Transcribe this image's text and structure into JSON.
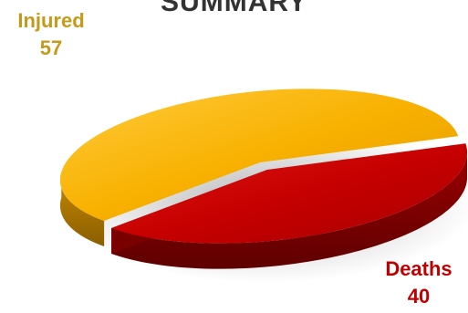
{
  "chart_data": {
    "type": "pie",
    "title": "SUMMARY",
    "categories": [
      "Injured",
      "Deaths"
    ],
    "values": [
      57,
      40
    ],
    "colors": [
      "#F5A700",
      "#C00000"
    ],
    "label_colors": [
      "#C39A1A",
      "#C00000"
    ],
    "legend": "none",
    "three_d": true
  }
}
